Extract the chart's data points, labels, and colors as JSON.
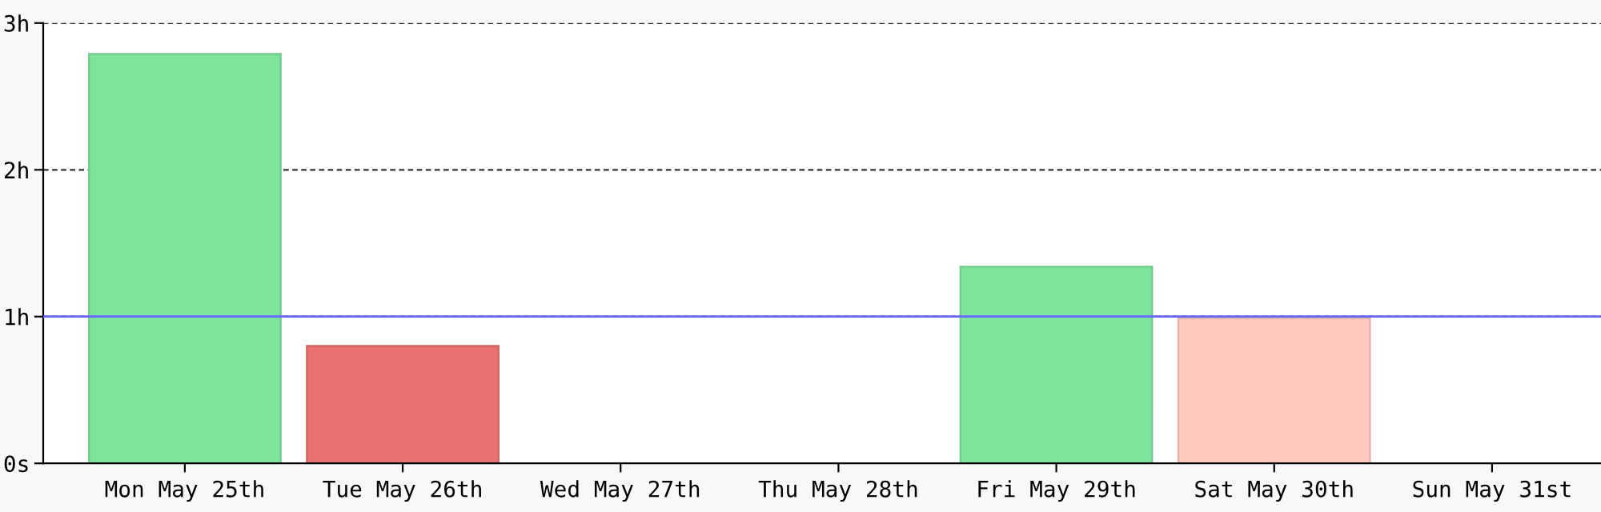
{
  "chart_data": {
    "type": "bar",
    "categories": [
      "Mon May 25th",
      "Tue May 26th",
      "Wed May 27th",
      "Thu May 28th",
      "Fri May 29th",
      "Sat May 30th",
      "Sun May 31st"
    ],
    "values": [
      2.79,
      0.8,
      0,
      0,
      1.34,
      0.99,
      0
    ],
    "colors": [
      "#7ee49c",
      "#eb7070",
      "#7ee49c",
      "#7ee49c",
      "#7ee49c",
      "#ffc9c0",
      "#7ee49c"
    ],
    "ylim": [
      0,
      3
    ],
    "yticks": [
      {
        "value": 0,
        "label": "0s"
      },
      {
        "value": 1,
        "label": "1h"
      },
      {
        "value": 2,
        "label": "2h"
      },
      {
        "value": 3,
        "label": "3h"
      }
    ],
    "grid": "y",
    "ref_lines": [
      {
        "axis": "y",
        "value": 1,
        "label": null,
        "color": "#6666ff",
        "line_style": "solid"
      }
    ]
  }
}
